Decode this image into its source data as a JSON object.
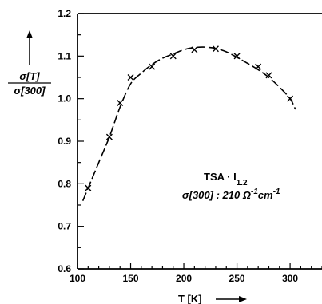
{
  "chart_data": {
    "type": "scatter",
    "ylabel": {
      "numerator": "σ[T]",
      "denominator": "σ[300]"
    },
    "xlabel": "T [K]",
    "xlim": [
      100,
      330
    ],
    "ylim": [
      0.6,
      1.2
    ],
    "x_ticks": [
      100,
      150,
      200,
      250,
      300
    ],
    "y_ticks": [
      0.6,
      0.7,
      0.8,
      0.9,
      1.0,
      1.1,
      1.2
    ],
    "x_tick_labels": [
      "100",
      "150",
      "200",
      "250",
      "300"
    ],
    "y_tick_labels": [
      "0.6",
      "0.7",
      "0.8",
      "0.9",
      "1.0",
      "1.1",
      "1.2"
    ],
    "series": [
      {
        "marker": "x",
        "x": [
          110,
          130,
          140,
          150,
          170,
          190,
          210,
          230,
          250,
          270,
          280,
          300
        ],
        "y": [
          0.79,
          0.91,
          0.99,
          1.05,
          1.075,
          1.1,
          1.115,
          1.117,
          1.1,
          1.075,
          1.055,
          1.0
        ]
      }
    ],
    "fit_curve": {
      "style": "dashed",
      "x": [
        105,
        110,
        120,
        130,
        140,
        150,
        160,
        170,
        180,
        190,
        200,
        210,
        220,
        230,
        240,
        250,
        260,
        270,
        280,
        290,
        300,
        305
      ],
      "y": [
        0.76,
        0.79,
        0.85,
        0.91,
        0.98,
        1.035,
        1.06,
        1.08,
        1.095,
        1.105,
        1.115,
        1.12,
        1.121,
        1.118,
        1.11,
        1.097,
        1.083,
        1.068,
        1.05,
        1.027,
        1.0,
        0.975
      ]
    },
    "annotation": {
      "line1_main": "TSA · I",
      "line1_sub": "1.2",
      "line2": "σ[300] : 210 Ω",
      "line2_sup1": "-1",
      "line2_mid": "cm",
      "line2_sup2": "-1"
    }
  }
}
